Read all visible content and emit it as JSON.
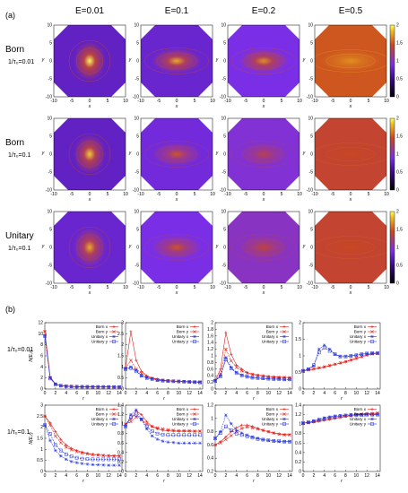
{
  "colors": {
    "born": "#e0201a",
    "unitary": "#2233e0",
    "colormap": [
      "#000000",
      "#3a0a86",
      "#7a2fe6",
      "#c9461f",
      "#f2c21e",
      "#ffff60"
    ]
  },
  "panel_a": {
    "label": "(a)"
  },
  "panel_b": {
    "label": "(b)"
  },
  "columns": [
    "E=0.01",
    "E=0.1",
    "E=0.2",
    "E=0.5"
  ],
  "maps_rows": [
    {
      "title": "Born",
      "sub": "1/τ₀=0.01"
    },
    {
      "title": "Born",
      "sub": "1/τ₀=0.1"
    },
    {
      "title": "Unitary",
      "sub": "1/τ₀=0.1"
    }
  ],
  "line_rows": [
    {
      "sub": "1/τ₀=0.01"
    },
    {
      "sub": "1/τ₀=0.1"
    }
  ],
  "map_axes": {
    "xlabel": "x",
    "ylabel": "y",
    "ticks": [
      "-10",
      "-5",
      "0",
      "5",
      "10"
    ],
    "colorbar_ticks": [
      "0",
      "0.5",
      "1",
      "1.5",
      "2"
    ]
  },
  "line_axes": {
    "xlabel": "r",
    "ylabel": "N(E,r)",
    "xticks": [
      "0",
      "2",
      "4",
      "6",
      "8",
      "10",
      "12",
      "14"
    ]
  },
  "legend": [
    "Born x",
    "Born y",
    "Unitary x",
    "Unitary y"
  ],
  "chart_data": [
    {
      "type": "heatmap",
      "description_role": "local density of states maps",
      "xlim": [
        -10,
        10
      ],
      "ylim": [
        -10,
        10
      ],
      "zlim": [
        0,
        2
      ],
      "rows": [
        {
          "row": "Born 1/τ₀=0.01",
          "columns": [
            "E=0.01",
            "E=0.1",
            "E=0.2",
            "E=0.5"
          ],
          "background_level": [
            0.75,
            0.8,
            0.9,
            1.5
          ],
          "peak_level": [
            2.0,
            1.8,
            1.7,
            1.7
          ]
        },
        {
          "row": "Born 1/τ₀=0.1",
          "columns": [
            "E=0.01",
            "E=0.1",
            "E=0.2",
            "E=0.5"
          ],
          "background_level": [
            0.75,
            0.85,
            0.95,
            1.4
          ],
          "peak_level": [
            1.9,
            1.5,
            1.35,
            1.45
          ]
        },
        {
          "row": "Unitary 1/τ₀=0.1",
          "columns": [
            "E=0.01",
            "E=0.1",
            "E=0.2",
            "E=0.5"
          ],
          "background_level": [
            0.8,
            0.9,
            1.0,
            1.4
          ],
          "peak_level": [
            1.8,
            1.5,
            1.4,
            1.45
          ]
        }
      ]
    },
    {
      "type": "line",
      "x": [
        0,
        1,
        2,
        3,
        4,
        5,
        6,
        7,
        8,
        9,
        10,
        11,
        12,
        13,
        14
      ],
      "panels": [
        {
          "row": "1/τ₀=0.01",
          "column": "E=0.01",
          "ylim": [
            0,
            12
          ],
          "yticks": [
            0,
            2,
            4,
            6,
            8,
            10,
            12
          ],
          "series": [
            {
              "name": "Born x",
              "values": [
                10.4,
                2.2,
                0.9,
                0.6,
                0.5,
                0.45,
                0.42,
                0.4,
                0.4,
                0.38,
                0.38,
                0.37,
                0.37,
                0.36,
                0.36
              ]
            },
            {
              "name": "Born y",
              "values": [
                10.4,
                2.0,
                0.85,
                0.6,
                0.5,
                0.45,
                0.42,
                0.4,
                0.4,
                0.38,
                0.38,
                0.37,
                0.37,
                0.36,
                0.36
              ]
            },
            {
              "name": "Unitary x",
              "values": [
                9.6,
                2.1,
                0.9,
                0.6,
                0.5,
                0.45,
                0.42,
                0.4,
                0.4,
                0.38,
                0.38,
                0.37,
                0.37,
                0.36,
                0.36
              ]
            },
            {
              "name": "Unitary y",
              "values": [
                9.6,
                1.9,
                0.85,
                0.6,
                0.5,
                0.45,
                0.42,
                0.4,
                0.4,
                0.38,
                0.38,
                0.37,
                0.37,
                0.36,
                0.36
              ]
            }
          ]
        },
        {
          "row": "1/τ₀=0.01",
          "column": "E=0.1",
          "ylim": [
            0,
            3
          ],
          "yticks": [
            0,
            0.5,
            1,
            1.5,
            2,
            2.5,
            3
          ],
          "series": [
            {
              "name": "Born x",
              "values": [
                0.95,
                2.6,
                1.3,
                0.8,
                0.6,
                0.5,
                0.45,
                0.4,
                0.38,
                0.36,
                0.35,
                0.34,
                0.33,
                0.32,
                0.32
              ]
            },
            {
              "name": "Born y",
              "values": [
                0.95,
                1.3,
                0.9,
                0.7,
                0.55,
                0.48,
                0.43,
                0.4,
                0.38,
                0.36,
                0.35,
                0.34,
                0.33,
                0.32,
                0.32
              ]
            },
            {
              "name": "Unitary x",
              "values": [
                0.9,
                1.0,
                0.85,
                0.6,
                0.5,
                0.45,
                0.4,
                0.38,
                0.36,
                0.35,
                0.34,
                0.33,
                0.32,
                0.31,
                0.3
              ]
            },
            {
              "name": "Unitary y",
              "values": [
                0.9,
                0.95,
                0.8,
                0.6,
                0.5,
                0.45,
                0.4,
                0.38,
                0.36,
                0.35,
                0.34,
                0.33,
                0.32,
                0.31,
                0.3
              ]
            }
          ]
        },
        {
          "row": "1/τ₀=0.01",
          "column": "E=0.2",
          "ylim": [
            0,
            2
          ],
          "yticks": [
            0,
            0.2,
            0.4,
            0.6,
            0.8,
            1,
            1.2,
            1.4,
            1.6,
            1.8,
            2
          ],
          "series": [
            {
              "name": "Born x",
              "values": [
                0.25,
                0.6,
                1.7,
                1.05,
                0.72,
                0.6,
                0.5,
                0.45,
                0.42,
                0.4,
                0.38,
                0.37,
                0.36,
                0.35,
                0.35
              ]
            },
            {
              "name": "Born y",
              "values": [
                0.25,
                0.45,
                1.2,
                0.85,
                0.65,
                0.55,
                0.48,
                0.44,
                0.41,
                0.39,
                0.37,
                0.36,
                0.35,
                0.35,
                0.34
              ]
            },
            {
              "name": "Unitary x",
              "values": [
                0.25,
                0.4,
                0.95,
                0.65,
                0.5,
                0.42,
                0.38,
                0.35,
                0.33,
                0.32,
                0.31,
                0.3,
                0.3,
                0.29,
                0.29
              ]
            },
            {
              "name": "Unitary y",
              "values": [
                0.25,
                0.38,
                0.9,
                0.62,
                0.48,
                0.41,
                0.37,
                0.34,
                0.33,
                0.32,
                0.31,
                0.3,
                0.3,
                0.29,
                0.29
              ]
            }
          ]
        },
        {
          "row": "1/τ₀=0.01",
          "column": "E=0.5",
          "ylim": [
            0,
            2
          ],
          "yticks": [
            0,
            0.5,
            1,
            1.5,
            2
          ],
          "series": [
            {
              "name": "Born x",
              "values": [
                0.55,
                0.57,
                0.6,
                0.63,
                0.66,
                0.7,
                0.74,
                0.78,
                0.82,
                0.87,
                0.92,
                0.97,
                1.02,
                1.06,
                1.08
              ]
            },
            {
              "name": "Born y",
              "values": [
                0.55,
                0.58,
                0.61,
                0.64,
                0.67,
                0.71,
                0.75,
                0.79,
                0.83,
                0.88,
                0.93,
                0.98,
                1.03,
                1.06,
                1.08
              ]
            },
            {
              "name": "Unitary x",
              "values": [
                0.55,
                0.6,
                0.7,
                1.2,
                1.32,
                1.2,
                1.05,
                0.98,
                0.98,
                1.0,
                1.02,
                1.05,
                1.07,
                1.08,
                1.08
              ]
            },
            {
              "name": "Unitary y",
              "values": [
                0.55,
                0.6,
                0.72,
                1.1,
                1.25,
                1.15,
                1.05,
                0.98,
                0.98,
                1.0,
                1.02,
                1.05,
                1.07,
                1.08,
                1.08
              ]
            }
          ]
        },
        {
          "row": "1/τ₀=0.1",
          "column": "E=0.01",
          "ylim": [
            0,
            3
          ],
          "yticks": [
            0,
            0.5,
            1,
            1.5,
            2,
            2.5,
            3
          ],
          "series": [
            {
              "name": "Born x",
              "values": [
                2.5,
                2.2,
                1.8,
                1.45,
                1.2,
                1.05,
                0.95,
                0.88,
                0.82,
                0.78,
                0.75,
                0.73,
                0.72,
                0.71,
                0.7
              ]
            },
            {
              "name": "Born y",
              "values": [
                2.5,
                2.1,
                1.6,
                1.3,
                1.1,
                0.98,
                0.9,
                0.84,
                0.8,
                0.76,
                0.74,
                0.72,
                0.71,
                0.7,
                0.7
              ]
            },
            {
              "name": "Unitary x",
              "values": [
                2.1,
                1.4,
                0.95,
                0.7,
                0.55,
                0.45,
                0.4,
                0.36,
                0.33,
                0.31,
                0.3,
                0.29,
                0.28,
                0.28,
                0.28
              ]
            },
            {
              "name": "Unitary y",
              "values": [
                2.1,
                1.7,
                1.2,
                0.95,
                0.78,
                0.68,
                0.62,
                0.58,
                0.56,
                0.55,
                0.55,
                0.55,
                0.55,
                0.55,
                0.55
              ]
            }
          ]
        },
        {
          "row": "1/τ₀=0.1",
          "column": "E=0.1",
          "ylim": [
            0,
            1.4
          ],
          "yticks": [
            0,
            0.2,
            0.4,
            0.6,
            0.8,
            1,
            1.2,
            1.4
          ],
          "series": [
            {
              "name": "Born x",
              "values": [
                1.0,
                1.1,
                1.28,
                1.2,
                1.05,
                0.95,
                0.9,
                0.87,
                0.86,
                0.85,
                0.85,
                0.85,
                0.85,
                0.85,
                0.85
              ]
            },
            {
              "name": "Born y",
              "values": [
                1.0,
                1.05,
                1.15,
                1.1,
                1.0,
                0.95,
                0.92,
                0.9,
                0.88,
                0.87,
                0.86,
                0.86,
                0.86,
                0.85,
                0.85
              ]
            },
            {
              "name": "Unitary x",
              "values": [
                0.95,
                1.2,
                1.3,
                1.1,
                0.9,
                0.75,
                0.68,
                0.64,
                0.62,
                0.61,
                0.6,
                0.6,
                0.6,
                0.6,
                0.6
              ]
            },
            {
              "name": "Unitary y",
              "values": [
                0.95,
                1.15,
                1.2,
                1.1,
                0.95,
                0.85,
                0.8,
                0.78,
                0.77,
                0.77,
                0.77,
                0.77,
                0.77,
                0.77,
                0.77
              ]
            }
          ]
        },
        {
          "row": "1/τ₀=0.1",
          "column": "E=0.2",
          "ylim": [
            0.2,
            1.2
          ],
          "yticks": [
            0.2,
            0.4,
            0.6,
            0.8,
            1,
            1.2
          ],
          "series": [
            {
              "name": "Born x",
              "values": [
                0.6,
                0.65,
                0.72,
                0.8,
                0.86,
                0.9,
                0.9,
                0.88,
                0.85,
                0.82,
                0.8,
                0.78,
                0.77,
                0.76,
                0.76
              ]
            },
            {
              "name": "Born y",
              "values": [
                0.6,
                0.63,
                0.68,
                0.74,
                0.8,
                0.85,
                0.87,
                0.86,
                0.84,
                0.82,
                0.8,
                0.78,
                0.76,
                0.75,
                0.75
              ]
            },
            {
              "name": "Unitary x",
              "values": [
                0.7,
                0.8,
                1.05,
                0.92,
                0.82,
                0.78,
                0.75,
                0.72,
                0.7,
                0.68,
                0.67,
                0.66,
                0.65,
                0.65,
                0.65
              ]
            },
            {
              "name": "Unitary y",
              "values": [
                0.7,
                0.78,
                0.88,
                0.82,
                0.77,
                0.75,
                0.73,
                0.71,
                0.69,
                0.68,
                0.67,
                0.66,
                0.66,
                0.65,
                0.65
              ]
            }
          ]
        },
        {
          "row": "1/τ₀=0.1",
          "column": "E=0.5",
          "ylim": [
            0,
            1.4
          ],
          "yticks": [
            0,
            0.2,
            0.4,
            0.6,
            0.8,
            1,
            1.2,
            1.4
          ],
          "series": [
            {
              "name": "Born x",
              "values": [
                1.02,
                1.03,
                1.04,
                1.06,
                1.08,
                1.1,
                1.12,
                1.14,
                1.16,
                1.18,
                1.2,
                1.21,
                1.22,
                1.23,
                1.23
              ]
            },
            {
              "name": "Born y",
              "values": [
                1.02,
                1.03,
                1.05,
                1.07,
                1.09,
                1.11,
                1.13,
                1.15,
                1.17,
                1.18,
                1.2,
                1.21,
                1.22,
                1.22,
                1.23
              ]
            },
            {
              "name": "Unitary x",
              "values": [
                1.02,
                1.04,
                1.07,
                1.1,
                1.13,
                1.15,
                1.17,
                1.18,
                1.19,
                1.2,
                1.2,
                1.2,
                1.2,
                1.2,
                1.2
              ]
            },
            {
              "name": "Unitary y",
              "values": [
                1.02,
                1.04,
                1.06,
                1.09,
                1.12,
                1.14,
                1.16,
                1.17,
                1.18,
                1.19,
                1.19,
                1.19,
                1.2,
                1.2,
                1.2
              ]
            }
          ]
        }
      ]
    }
  ]
}
